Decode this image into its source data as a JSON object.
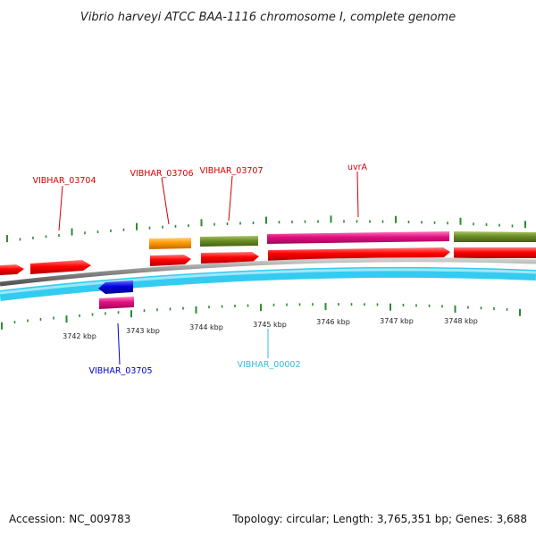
{
  "title": "Vibrio harveyi ATCC BAA-1116 chromosome I, complete genome",
  "footer": {
    "accession": "Accession: NC_009783",
    "summary": "Topology: circular; Length: 3,765,351 bp; Genes: 3,688"
  },
  "colors": {
    "red": "#ff0000",
    "orange": "#ff9900",
    "olive": "#6b8e23",
    "pink": "#e0107f",
    "blue": "#0000dd",
    "cyan": "#33ccf0",
    "backbone": "#8a8a8a",
    "tick": "#2e8b2e",
    "label_red": "#d40000",
    "label_blue": "#0000cc",
    "label_cyan": "#33bbdd"
  },
  "axis": {
    "ticks": [
      "3742 kbp",
      "3743 kbp",
      "3744 kbp",
      "3745 kbp",
      "3746 kbp",
      "3747 kbp",
      "3748 kbp"
    ]
  },
  "genes": [
    {
      "label": "VIBHAR_03704",
      "color_key": "label_red"
    },
    {
      "label": "VIBHAR_03706",
      "color_key": "label_red"
    },
    {
      "label": "VIBHAR_03707",
      "color_key": "label_red"
    },
    {
      "label": "uvrA",
      "color_key": "label_red"
    },
    {
      "label": "VIBHAR_03705",
      "color_key": "label_blue"
    },
    {
      "label": "VIBHAR_00002",
      "color_key": "label_cyan"
    }
  ]
}
